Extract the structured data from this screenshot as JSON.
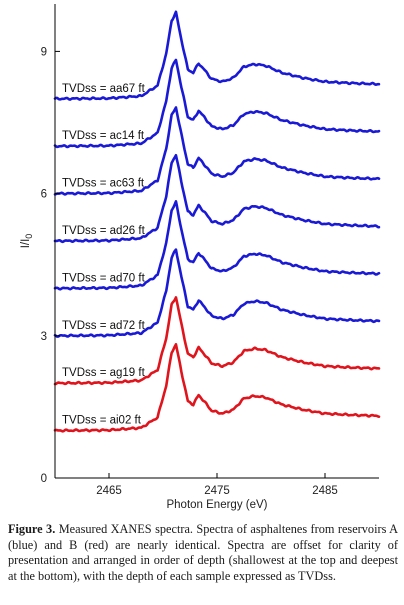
{
  "chart_data": {
    "type": "line",
    "title": "",
    "xlabel": "Photon Energy (eV)",
    "ylabel": "I/I0",
    "xlim": [
      2460,
      2490
    ],
    "ylim": [
      0,
      10
    ],
    "x_ticks": [
      2465,
      2475,
      2485
    ],
    "y_ticks": [
      0,
      3,
      6,
      9
    ],
    "colors": {
      "reservoir_A": "#1a1ad6",
      "reservoir_B": "#e0141c"
    },
    "series": [
      {
        "name": "TVDss = aa67 ft",
        "reservoir": "A",
        "offset": 8.0
      },
      {
        "name": "TVDss = ac14 ft",
        "reservoir": "A",
        "offset": 7.0
      },
      {
        "name": "TVDss = ac63 ft",
        "reservoir": "A",
        "offset": 6.0
      },
      {
        "name": "TVDss = ad26 ft",
        "reservoir": "A",
        "offset": 5.0
      },
      {
        "name": "TVDss = ad70 ft",
        "reservoir": "A",
        "offset": 4.0
      },
      {
        "name": "TVDss = ad72 ft",
        "reservoir": "A",
        "offset": 3.0
      },
      {
        "name": "TVDss = ag19 ft",
        "reservoir": "B",
        "offset": 2.0
      },
      {
        "name": "TVDss = ai02 ft",
        "reservoir": "B",
        "offset": 1.0
      }
    ],
    "spectrum_points": {
      "x": [
        2460,
        2465,
        2468,
        2469.5,
        2470.3,
        2470.8,
        2471.2,
        2471.7,
        2472.3,
        2472.8,
        2473.3,
        2473.8,
        2474.5,
        2475.5,
        2476.5,
        2477.5,
        2478.5,
        2479.5,
        2481,
        2483,
        2485,
        2487.5,
        2490
      ],
      "y": [
        0.0,
        0.01,
        0.06,
        0.28,
        0.95,
        1.65,
        1.82,
        1.25,
        0.62,
        0.55,
        0.75,
        0.62,
        0.42,
        0.36,
        0.44,
        0.68,
        0.73,
        0.7,
        0.55,
        0.44,
        0.36,
        0.33,
        0.31
      ]
    }
  },
  "caption": {
    "label": "Figure 3.",
    "text": "Measured XANES spectra. Spectra of asphaltenes from reservoirs A (blue) and B (red) are nearly identical. Spectra are offset for clarity of presentation and arranged in order of depth (shallowest at the top and deepest at the bottom), with the depth of each sample expressed as TVDss."
  }
}
